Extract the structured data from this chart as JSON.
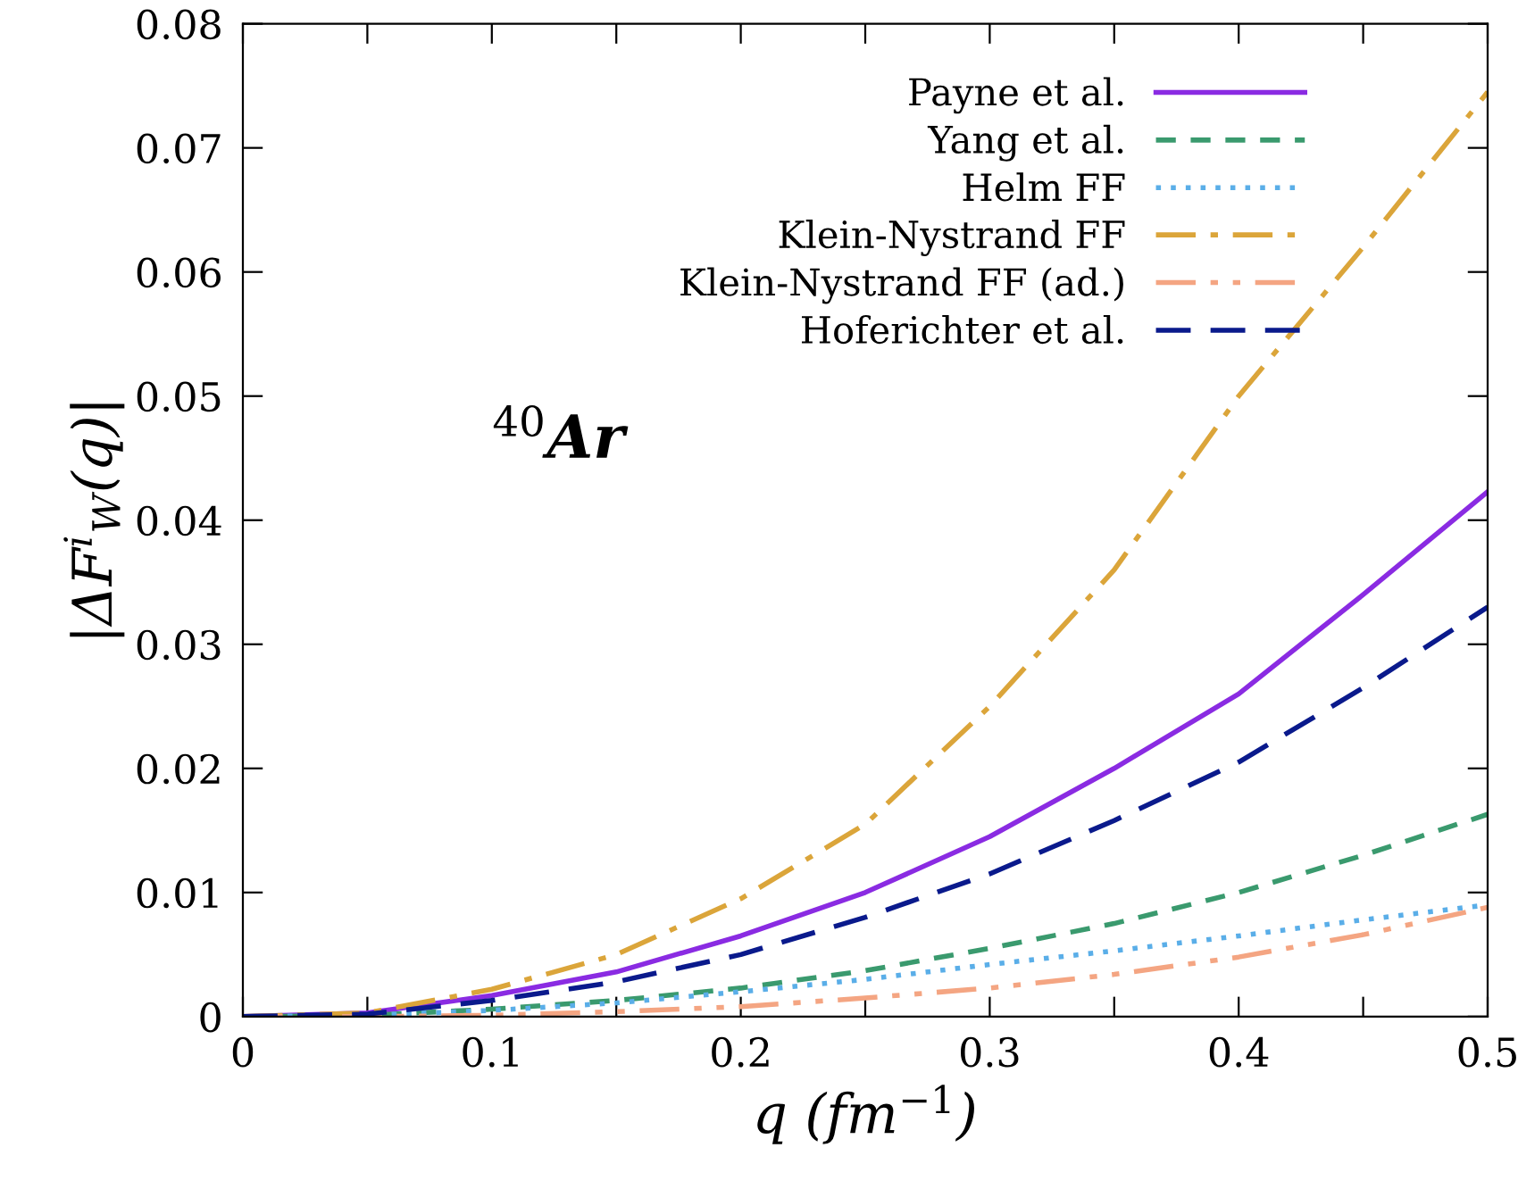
{
  "chart_data": {
    "type": "line",
    "xlabel": "q (fm$^{−1}$)",
    "ylabel": "|ΔF$^{i}$$_{W}$(q)|",
    "x": [
      0,
      0.05,
      0.1,
      0.15,
      0.2,
      0.25,
      0.3,
      0.35,
      0.4,
      0.45,
      0.5
    ],
    "series": [
      {
        "name": "Payne et al.",
        "color": "#8a2be2",
        "line_style": "solid",
        "values": [
          0,
          0.0003,
          0.0017,
          0.0036,
          0.0065,
          0.01,
          0.0145,
          0.02,
          0.026,
          0.034,
          0.0423
        ]
      },
      {
        "name": "Yang et al.",
        "color": "#3a9a6e",
        "line_style": "dashed",
        "values": [
          0,
          0.0001,
          0.0006,
          0.0013,
          0.0023,
          0.0037,
          0.0055,
          0.0075,
          0.01,
          0.013,
          0.0163
        ]
      },
      {
        "name": "Helm FF",
        "color": "#5aaee8",
        "line_style": "dotted",
        "values": [
          0,
          0.0001,
          0.0005,
          0.0011,
          0.002,
          0.003,
          0.0042,
          0.0053,
          0.0065,
          0.0078,
          0.009
        ]
      },
      {
        "name": "Klein-Nystrand FF",
        "color": "#dba53a",
        "line_style": "dashdot",
        "values": [
          0,
          0.0003,
          0.0022,
          0.005,
          0.0095,
          0.0155,
          0.025,
          0.036,
          0.05,
          0.062,
          0.0745
        ]
      },
      {
        "name": "Klein-Nystrand FF (ad.)",
        "color": "#f4a582",
        "line_style": "dashdotdot",
        "values": [
          0,
          0,
          0.0001,
          0.0004,
          0.0008,
          0.0015,
          0.0023,
          0.0034,
          0.0048,
          0.0066,
          0.0088
        ]
      },
      {
        "name": "Hoferichter et al.",
        "color": "#0a1a8c",
        "line_style": "longdash",
        "values": [
          0,
          0.0002,
          0.0013,
          0.0028,
          0.005,
          0.008,
          0.0115,
          0.0158,
          0.0205,
          0.0265,
          0.033
        ]
      }
    ],
    "xlim": [
      0,
      0.5
    ],
    "ylim": [
      0,
      0.08
    ],
    "xticks": [
      0,
      {
        "value": 0.05,
        "label": null
      },
      0.1,
      {
        "value": 0.15,
        "label": null
      },
      0.2,
      {
        "value": 0.25,
        "label": null
      },
      0.3,
      {
        "value": 0.35,
        "label": null
      },
      0.4,
      {
        "value": 0.45,
        "label": null
      },
      0.5
    ],
    "yticks": [
      0,
      0.01,
      0.02,
      0.03,
      0.04,
      0.05,
      0.06,
      0.07,
      0.08
    ],
    "annotations": [
      "$^{40}$Ar"
    ],
    "legend": "top right",
    "grid": false
  }
}
